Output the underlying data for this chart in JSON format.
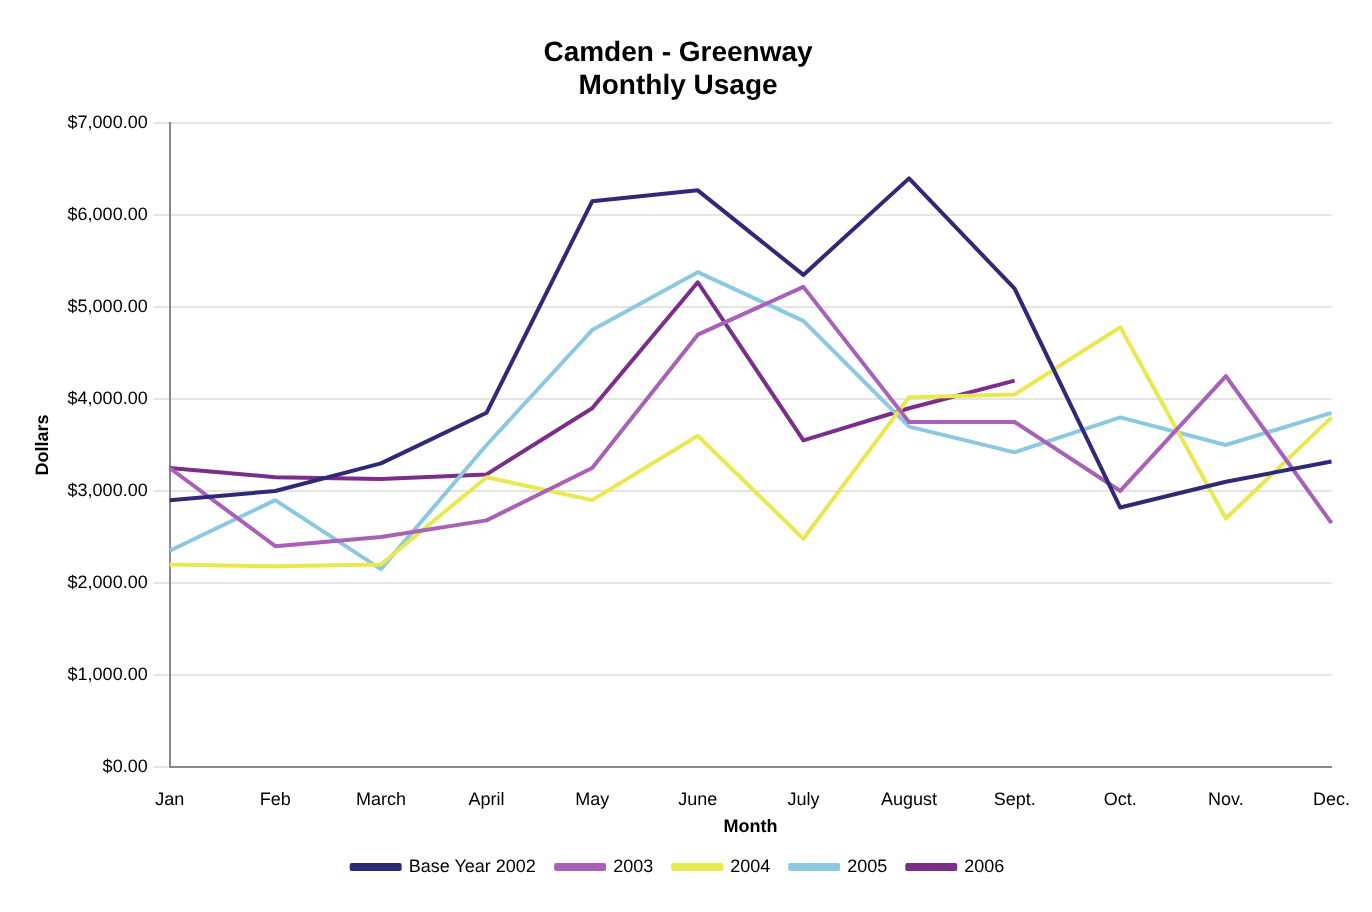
{
  "chart_data": {
    "type": "line",
    "title": "Camden - Greenway\nMonthly Usage",
    "xlabel": "Month",
    "ylabel": "Dollars",
    "categories": [
      "Jan",
      "Feb",
      "March",
      "April",
      "May",
      "June",
      "July",
      "August",
      "Sept.",
      "Oct.",
      "Nov.",
      "Dec."
    ],
    "ylim": [
      0,
      7000
    ],
    "yticks": [
      {
        "value": 0,
        "label": "$0.00"
      },
      {
        "value": 1000,
        "label": "$1,000.00"
      },
      {
        "value": 2000,
        "label": "$2,000.00"
      },
      {
        "value": 3000,
        "label": "$3,000.00"
      },
      {
        "value": 4000,
        "label": "$4,000.00"
      },
      {
        "value": 5000,
        "label": "$5,000.00"
      },
      {
        "value": 6000,
        "label": "$6,000.00"
      },
      {
        "value": 7000,
        "label": "$7,000.00"
      }
    ],
    "grid": "y",
    "legend": "bottom",
    "marker": "none",
    "line_style": "solid",
    "series": [
      {
        "name": "Base Year 2002",
        "color": "#2e2a78",
        "values": [
          2900,
          3000,
          3300,
          3850,
          6150,
          6270,
          5350,
          6400,
          5200,
          2820,
          3100,
          3320
        ]
      },
      {
        "name": "2003",
        "color": "#a860b8",
        "values": [
          3250,
          2400,
          2500,
          2680,
          3250,
          4700,
          5220,
          3750,
          3750,
          3000,
          4250,
          2650
        ]
      },
      {
        "name": "2004",
        "color": "#e8e850",
        "values": [
          2200,
          2180,
          2200,
          3150,
          2900,
          3600,
          2480,
          4020,
          4050,
          4780,
          2700,
          3800
        ]
      },
      {
        "name": "2005",
        "color": "#8cc8e0",
        "values": [
          2350,
          2900,
          2150,
          3500,
          4750,
          5380,
          4850,
          3700,
          3420,
          3800,
          3500,
          3850
        ]
      },
      {
        "name": "2006",
        "color": "#7a2e8a",
        "values": [
          3250,
          3150,
          3130,
          3180,
          3900,
          5270,
          3550,
          3900,
          4200,
          null,
          null,
          null
        ]
      }
    ]
  }
}
